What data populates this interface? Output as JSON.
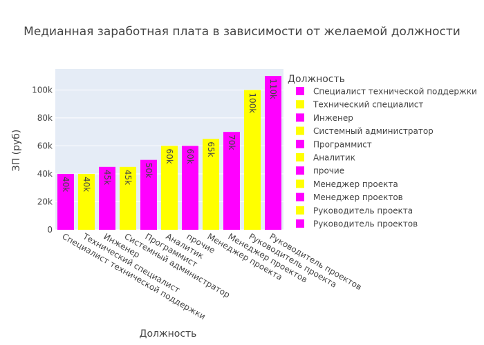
{
  "chart_data": {
    "type": "bar",
    "title": "Медианная заработная плата в зависимости от желаемой должности",
    "xlabel": "Должность",
    "ylabel": "ЗП (руб)",
    "legend_title": "Должность",
    "legend_position": "right",
    "ylim": [
      0,
      115000
    ],
    "y_ticks": [
      0,
      20000,
      40000,
      60000,
      80000,
      100000
    ],
    "y_tick_labels": [
      "0",
      "20k",
      "40k",
      "60k",
      "80k",
      "100k"
    ],
    "grid": true,
    "categories": [
      "Специалист технической поддержки",
      "Технический специалист",
      "Инженер",
      "Системный администратор",
      "Программист",
      "Аналитик",
      "прочие",
      "Менеджер проекта",
      "Менеджер проектов",
      "Руководитель проекта",
      "Руководитель проектов"
    ],
    "values": [
      40000,
      40000,
      45000,
      45000,
      50000,
      60000,
      60000,
      65000,
      70000,
      100000,
      110000
    ],
    "data_labels": [
      "40k",
      "40k",
      "45k",
      "45k",
      "50k",
      "60k",
      "60k",
      "65k",
      "70k",
      "100k",
      "110k"
    ],
    "colors": [
      "#ff00ff",
      "#ffff00",
      "#ff00ff",
      "#ffff00",
      "#ff00ff",
      "#ffff00",
      "#ff00ff",
      "#ffff00",
      "#ff00ff",
      "#ffff00",
      "#ff00ff"
    ]
  }
}
